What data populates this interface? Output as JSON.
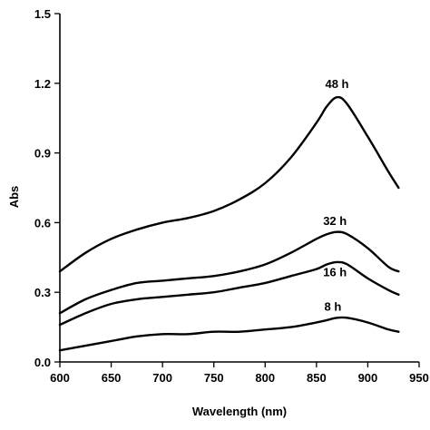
{
  "chart_data": {
    "type": "line",
    "title": "",
    "xlabel": "Wavelength (nm)",
    "ylabel": "Abs",
    "xlim": [
      600,
      950
    ],
    "ylim": [
      0.0,
      1.5
    ],
    "xticks": [
      600,
      650,
      700,
      750,
      800,
      850,
      900,
      950
    ],
    "xtick_labels": [
      "600",
      "650",
      "700",
      "750",
      "800",
      "850",
      "900",
      "950"
    ],
    "yticks": [
      0.0,
      0.3,
      0.6,
      0.9,
      1.2,
      1.5
    ],
    "ytick_labels": [
      "0.0",
      "0.3",
      "0.6",
      "0.9",
      "1.2",
      "1.5"
    ],
    "grid": false,
    "legend": "none",
    "series": [
      {
        "name": "48 h",
        "x": [
          600,
          625,
          650,
          675,
          700,
          725,
          750,
          775,
          800,
          825,
          850,
          860,
          870,
          880,
          900,
          920,
          930
        ],
        "y": [
          0.39,
          0.47,
          0.53,
          0.57,
          0.6,
          0.62,
          0.65,
          0.7,
          0.77,
          0.88,
          1.03,
          1.1,
          1.14,
          1.11,
          0.97,
          0.82,
          0.75
        ]
      },
      {
        "name": "32 h",
        "x": [
          600,
          625,
          650,
          675,
          700,
          725,
          750,
          775,
          800,
          825,
          850,
          860,
          870,
          880,
          900,
          920,
          930
        ],
        "y": [
          0.21,
          0.27,
          0.31,
          0.34,
          0.35,
          0.36,
          0.37,
          0.39,
          0.42,
          0.47,
          0.53,
          0.55,
          0.56,
          0.55,
          0.49,
          0.41,
          0.39
        ]
      },
      {
        "name": "16 h",
        "x": [
          600,
          625,
          650,
          675,
          700,
          725,
          750,
          775,
          800,
          825,
          850,
          860,
          870,
          880,
          900,
          920,
          930
        ],
        "y": [
          0.16,
          0.21,
          0.25,
          0.27,
          0.28,
          0.29,
          0.3,
          0.32,
          0.34,
          0.37,
          0.4,
          0.42,
          0.43,
          0.42,
          0.36,
          0.31,
          0.29
        ]
      },
      {
        "name": "8 h",
        "x": [
          600,
          625,
          650,
          675,
          700,
          725,
          750,
          775,
          800,
          825,
          850,
          860,
          870,
          880,
          900,
          920,
          930
        ],
        "y": [
          0.05,
          0.07,
          0.09,
          0.11,
          0.12,
          0.12,
          0.13,
          0.13,
          0.14,
          0.15,
          0.17,
          0.18,
          0.19,
          0.19,
          0.17,
          0.14,
          0.13
        ]
      }
    ],
    "annotations": [
      {
        "text": "48 h",
        "x": 870,
        "y": 1.18
      },
      {
        "text": "32 h",
        "x": 868,
        "y": 0.59
      },
      {
        "text": "16 h",
        "x": 868,
        "y": 0.37
      },
      {
        "text": "8 h",
        "x": 866,
        "y": 0.22
      }
    ]
  }
}
